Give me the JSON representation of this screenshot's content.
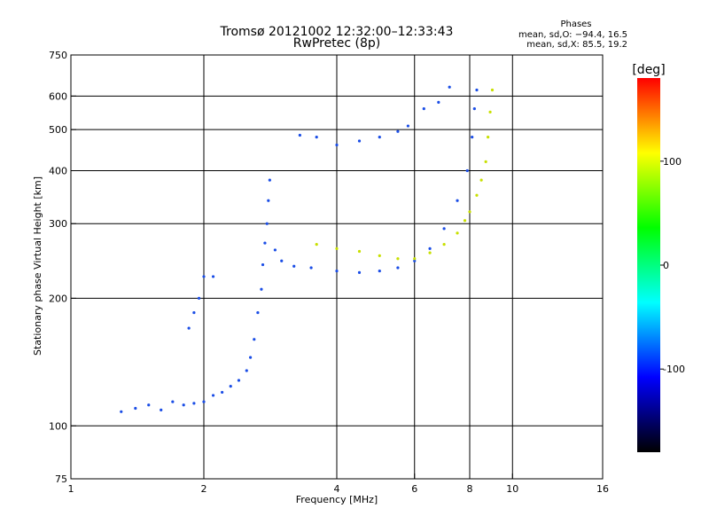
{
  "chart_data": {
    "type": "scatter",
    "title": "Tromsø 20121002 12:32:00–12:33:43",
    "subtitle": "RwPretec (8p)",
    "xlabel": "Frequency [MHz]",
    "ylabel": "Stationary phase Virtual Height [km]",
    "x_scale": "log",
    "y_scale": "log",
    "xlim": [
      1,
      16
    ],
    "ylim": [
      75,
      750
    ],
    "x_ticks": [
      1,
      2,
      4,
      6,
      8,
      10,
      16
    ],
    "x_tick_labels": [
      "1",
      "2",
      "4",
      "6",
      "8",
      "10",
      "16"
    ],
    "x_grid": [
      2,
      4,
      6,
      8,
      10
    ],
    "y_ticks": [
      75,
      100,
      200,
      300,
      400,
      500,
      600,
      750
    ],
    "y_tick_labels": [
      "75",
      "100",
      "200",
      "300",
      "400",
      "500",
      "600",
      "750"
    ],
    "y_grid": [
      100,
      200,
      300,
      400,
      500,
      600
    ],
    "grid": true,
    "phase_stats": {
      "heading": "Phases",
      "line_o": "mean, sd,O: −94.4, 16.5",
      "line_x": "mean, sd,X:  85.5, 19.2"
    },
    "colorbar": {
      "label": "[deg]",
      "range": [
        -180,
        180
      ],
      "ticks": [
        100,
        0,
        -100
      ],
      "tick_labels": [
        "100",
        "0",
        "-100"
      ],
      "colors": [
        "#ff0000",
        "#ffff00",
        "#00ff00",
        "#00ffff",
        "#0000ff",
        "#000000"
      ]
    },
    "series": [
      {
        "name": "O",
        "phase": -100,
        "color": "#1a4de6",
        "points": [
          [
            1.3,
            108
          ],
          [
            1.4,
            110
          ],
          [
            1.5,
            112
          ],
          [
            1.6,
            109
          ],
          [
            1.7,
            114
          ],
          [
            1.8,
            112
          ],
          [
            1.9,
            113
          ],
          [
            2.0,
            114
          ],
          [
            2.1,
            118
          ],
          [
            2.2,
            120
          ],
          [
            2.3,
            124
          ],
          [
            2.4,
            128
          ],
          [
            2.5,
            135
          ],
          [
            2.55,
            145
          ],
          [
            2.6,
            160
          ],
          [
            2.65,
            185
          ],
          [
            2.7,
            210
          ],
          [
            2.72,
            240
          ],
          [
            2.75,
            270
          ],
          [
            2.78,
            300
          ],
          [
            2.8,
            340
          ],
          [
            2.82,
            380
          ],
          [
            2.9,
            260
          ],
          [
            3.0,
            245
          ],
          [
            3.2,
            238
          ],
          [
            3.5,
            236
          ],
          [
            4.0,
            232
          ],
          [
            4.5,
            230
          ],
          [
            5.0,
            232
          ],
          [
            5.5,
            236
          ],
          [
            6.0,
            245
          ],
          [
            6.5,
            262
          ],
          [
            7.0,
            292
          ],
          [
            7.5,
            340
          ],
          [
            7.9,
            400
          ],
          [
            8.1,
            480
          ],
          [
            8.2,
            560
          ],
          [
            8.3,
            620
          ],
          [
            1.85,
            170
          ],
          [
            1.9,
            185
          ],
          [
            1.95,
            200
          ],
          [
            2.0,
            225
          ],
          [
            2.1,
            225
          ],
          [
            3.3,
            485
          ],
          [
            3.6,
            480
          ],
          [
            4.0,
            460
          ],
          [
            4.5,
            470
          ],
          [
            5.0,
            480
          ],
          [
            5.5,
            495
          ],
          [
            5.8,
            510
          ],
          [
            6.3,
            560
          ],
          [
            6.8,
            580
          ],
          [
            7.2,
            630
          ]
        ]
      },
      {
        "name": "X",
        "phase": 85,
        "color": "#c8e000",
        "points": [
          [
            3.6,
            268
          ],
          [
            4.0,
            262
          ],
          [
            4.5,
            258
          ],
          [
            5.0,
            252
          ],
          [
            5.5,
            248
          ],
          [
            6.0,
            248
          ],
          [
            6.5,
            256
          ],
          [
            7.0,
            268
          ],
          [
            7.5,
            285
          ],
          [
            7.8,
            305
          ],
          [
            8.0,
            320
          ],
          [
            8.3,
            350
          ],
          [
            8.5,
            380
          ],
          [
            8.7,
            420
          ],
          [
            8.8,
            480
          ],
          [
            8.9,
            550
          ],
          [
            9.0,
            620
          ]
        ]
      }
    ]
  }
}
